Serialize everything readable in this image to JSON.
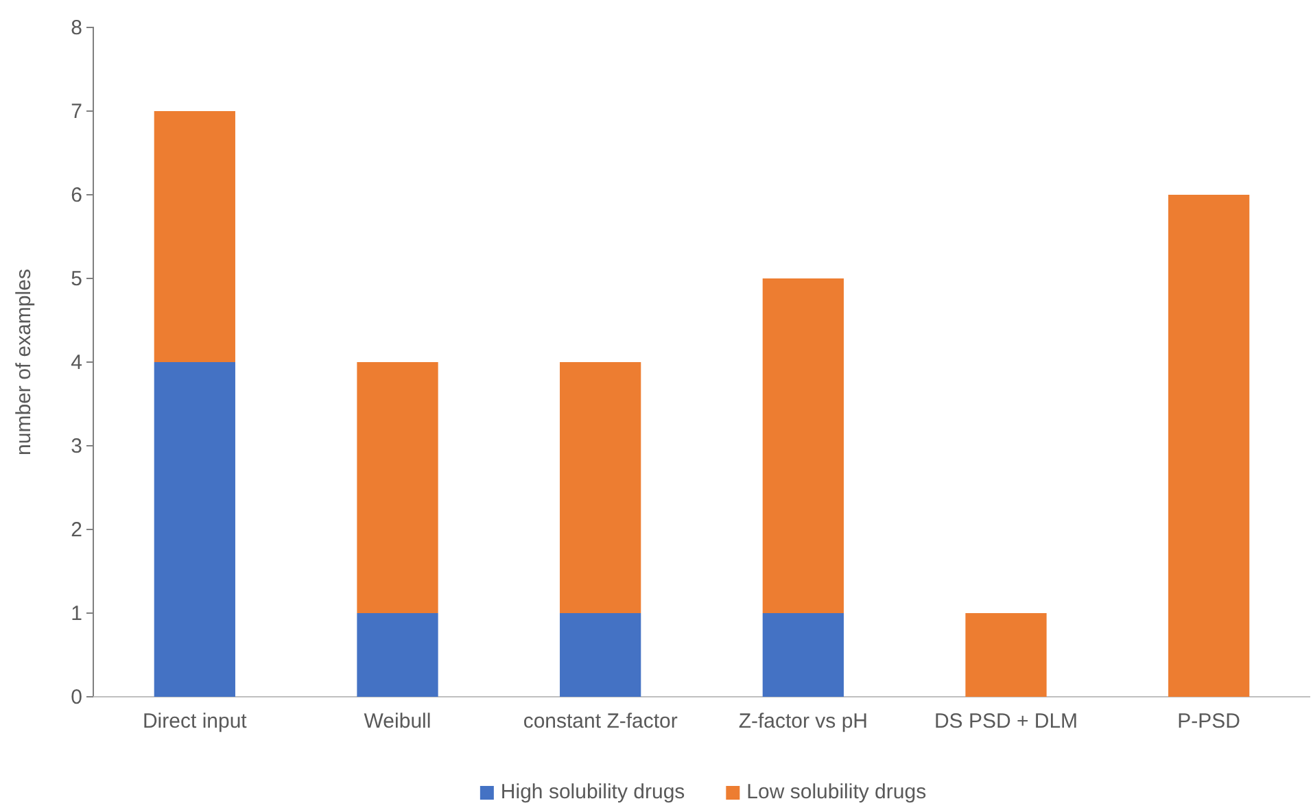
{
  "chart_data": {
    "type": "bar",
    "stacked": true,
    "ylabel": "number of examples",
    "categories": [
      "Direct input",
      "Weibull",
      "constant Z-factor",
      "Z-factor vs pH",
      "DS PSD + DLM",
      "P-PSD"
    ],
    "series": [
      {
        "name": "High solubility drugs",
        "color": "#4472c4",
        "values": [
          4,
          1,
          1,
          1,
          0,
          0
        ]
      },
      {
        "name": "Low solubility drugs",
        "color": "#ed7d31",
        "values": [
          3,
          3,
          3,
          4,
          1,
          6
        ]
      }
    ],
    "ylim": [
      0,
      8
    ],
    "yticks": [
      0,
      1,
      2,
      3,
      4,
      5,
      6,
      7,
      8
    ],
    "grid": false,
    "legend": "bottom"
  }
}
